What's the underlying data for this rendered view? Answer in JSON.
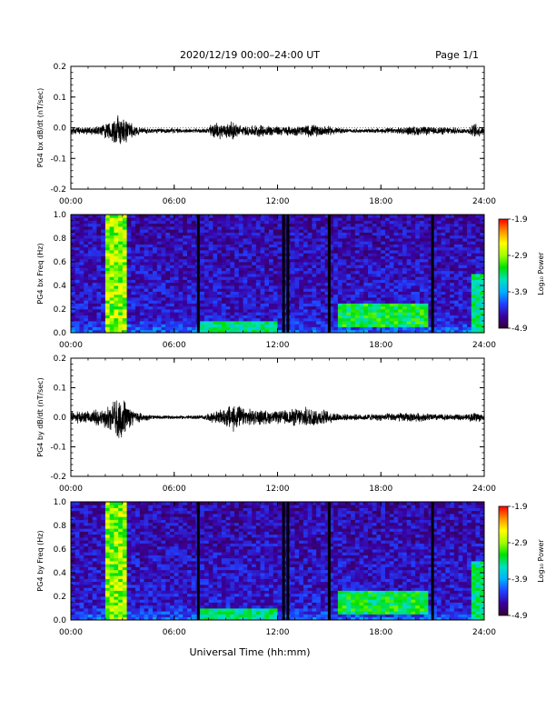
{
  "header": {
    "title": "2020/12/19  00:00–24:00 UT",
    "page": "Page 1/1"
  },
  "xaxis": {
    "label": "Universal Time (hh:mm)",
    "ticks": [
      "00:00",
      "06:00",
      "12:00",
      "18:00",
      "24:00"
    ]
  },
  "colorbar": {
    "label": "Log₁₀ Power",
    "ticks": [
      "-1.9",
      "-2.9",
      "-3.9",
      "-4.9"
    ],
    "colors": [
      "#330033",
      "#3a00a0",
      "#2040ff",
      "#00b0ff",
      "#00e0c0",
      "#00e000",
      "#a0ff00",
      "#ffff00",
      "#ff9000",
      "#ff0000"
    ]
  },
  "chart_data": [
    {
      "type": "line",
      "ylabel": "PG4 bx dB/dt (nT/sec)",
      "xlim": [
        "00:00",
        "24:00"
      ],
      "ylim": [
        -0.2,
        0.2
      ],
      "yticks": [
        "0.2",
        "0.1",
        "0.0",
        "-0.1",
        "-0.2"
      ],
      "baseline": -0.01,
      "envelope": {
        "x_hours": [
          0,
          1,
          1.8,
          2.4,
          2.8,
          3.1,
          3.6,
          4.2,
          5,
          6,
          7,
          7.8,
          8.3,
          8.8,
          9.4,
          10,
          11,
          12,
          13,
          14,
          15,
          15.5,
          16,
          17,
          18,
          19,
          20,
          21,
          22,
          23,
          23.5,
          24
        ],
        "amplitude": [
          0.01,
          0.012,
          0.02,
          0.035,
          0.06,
          0.05,
          0.02,
          0.01,
          0.008,
          0.008,
          0.006,
          0.007,
          0.028,
          0.025,
          0.03,
          0.015,
          0.02,
          0.015,
          0.015,
          0.02,
          0.015,
          0.01,
          0.006,
          0.006,
          0.008,
          0.01,
          0.015,
          0.012,
          0.012,
          0.008,
          0.025,
          0.01
        ]
      },
      "color": "#000000"
    },
    {
      "type": "heatmap",
      "ylabel": "PG4 bx Freq (Hz)",
      "xlim": [
        "00:00",
        "24:00"
      ],
      "ylim": [
        0.0,
        1.0
      ],
      "yticks": [
        "1.0",
        "0.8",
        "0.6",
        "0.4",
        "0.2",
        "0.0"
      ],
      "color_range": [
        -4.9,
        -1.9
      ],
      "data_gaps_hours": [
        7.4,
        12.35,
        12.6,
        15.0,
        21.0
      ],
      "features": [
        {
          "x_hours": [
            2.0,
            3.3
          ],
          "freq_hz": [
            0.0,
            1.0
          ],
          "log_power": -2.5
        },
        {
          "x_hours": [
            7.5,
            12.0
          ],
          "freq_hz": [
            0.0,
            0.1
          ],
          "log_power": -3.2
        },
        {
          "x_hours": [
            15.5,
            20.8
          ],
          "freq_hz": [
            0.05,
            0.25
          ],
          "log_power": -3.0
        },
        {
          "x_hours": [
            23.3,
            24.0
          ],
          "freq_hz": [
            0.0,
            0.5
          ],
          "log_power": -3.2
        }
      ]
    },
    {
      "type": "line",
      "ylabel": "PG4 by dB/dt (nT/sec)",
      "xlim": [
        "00:00",
        "24:00"
      ],
      "ylim": [
        -0.2,
        0.2
      ],
      "yticks": [
        "0.2",
        "0.1",
        "0.0",
        "-0.1",
        "-0.2"
      ],
      "baseline": 0.0,
      "envelope": {
        "x_hours": [
          0,
          1,
          1.8,
          2.4,
          2.8,
          3.1,
          3.6,
          4.2,
          5,
          6,
          7,
          7.8,
          8.3,
          8.8,
          9.4,
          10,
          11,
          12,
          13,
          14,
          15,
          15.5,
          16,
          17,
          18,
          19,
          20,
          21,
          22,
          23,
          23.5,
          24
        ],
        "amplitude": [
          0.02,
          0.02,
          0.03,
          0.045,
          0.075,
          0.06,
          0.025,
          0.012,
          0.006,
          0.006,
          0.006,
          0.008,
          0.02,
          0.025,
          0.05,
          0.03,
          0.025,
          0.02,
          0.03,
          0.035,
          0.02,
          0.015,
          0.01,
          0.01,
          0.012,
          0.015,
          0.015,
          0.012,
          0.01,
          0.01,
          0.02,
          0.01
        ]
      },
      "color": "#000000"
    },
    {
      "type": "heatmap",
      "ylabel": "PG4 by Freq (Hz)",
      "xlim": [
        "00:00",
        "24:00"
      ],
      "ylim": [
        0.0,
        1.0
      ],
      "yticks": [
        "1.0",
        "0.8",
        "0.6",
        "0.4",
        "0.2",
        "0.0"
      ],
      "color_range": [
        -4.9,
        -1.9
      ],
      "data_gaps_hours": [
        7.4,
        12.35,
        12.6,
        15.0,
        21.0
      ],
      "features": [
        {
          "x_hours": [
            2.0,
            3.3
          ],
          "freq_hz": [
            0.0,
            1.0
          ],
          "log_power": -2.5
        },
        {
          "x_hours": [
            7.5,
            12.0
          ],
          "freq_hz": [
            0.0,
            0.1
          ],
          "log_power": -3.2
        },
        {
          "x_hours": [
            15.5,
            20.8
          ],
          "freq_hz": [
            0.05,
            0.25
          ],
          "log_power": -3.0
        },
        {
          "x_hours": [
            16.0,
            16.05
          ],
          "freq_hz": [
            0.0,
            1.0
          ],
          "log_power": -3.5
        },
        {
          "x_hours": [
            23.3,
            24.0
          ],
          "freq_hz": [
            0.0,
            0.5
          ],
          "log_power": -3.2
        }
      ]
    }
  ]
}
